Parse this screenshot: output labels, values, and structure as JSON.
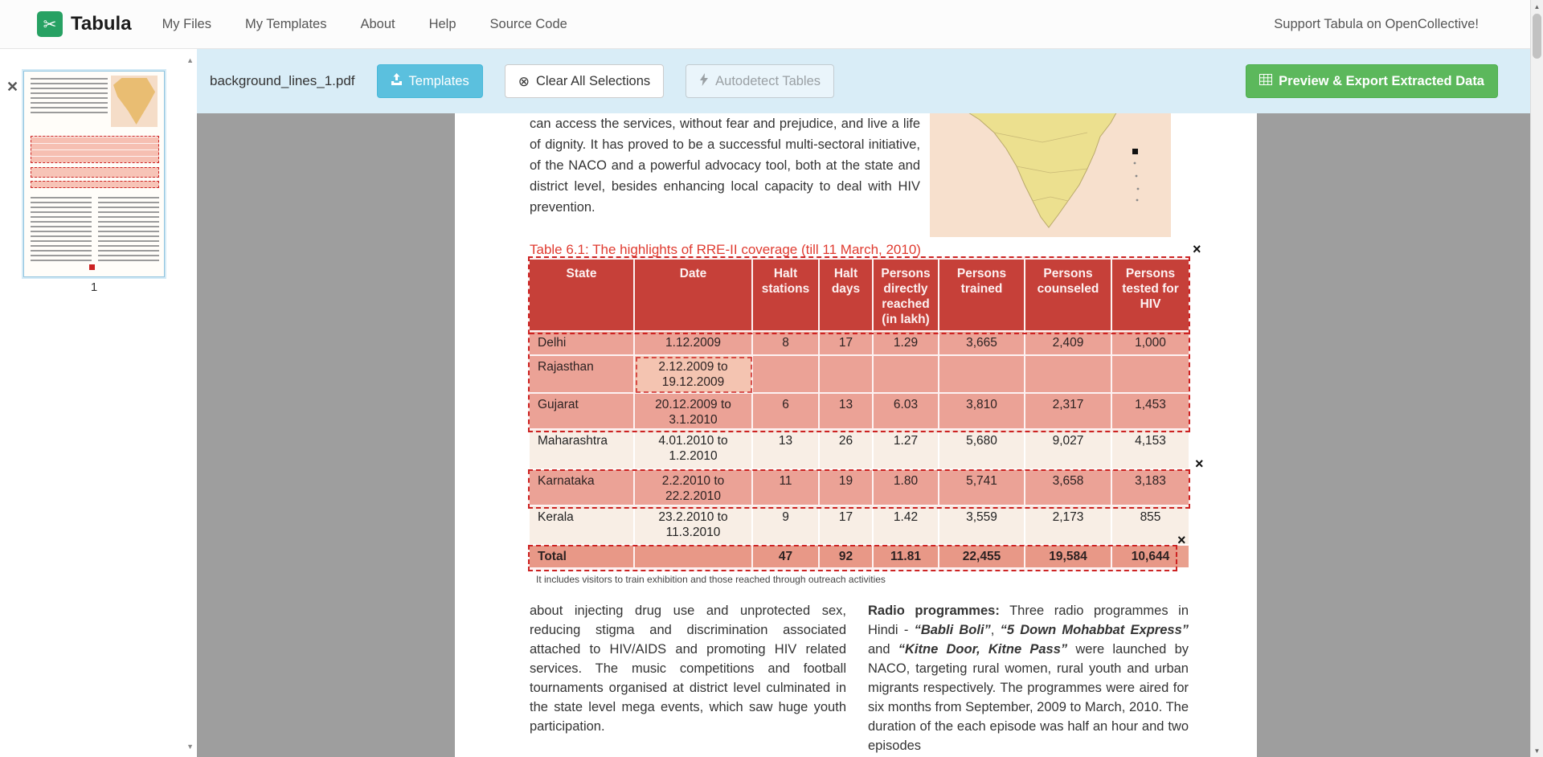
{
  "navbar": {
    "brand": "Tabula",
    "items": [
      {
        "label": "My Files"
      },
      {
        "label": "My Templates"
      },
      {
        "label": "About"
      },
      {
        "label": "Help"
      },
      {
        "label": "Source Code"
      }
    ],
    "support_link": "Support Tabula on OpenCollective!"
  },
  "toolbar": {
    "filename": "background_lines_1.pdf",
    "templates_button": "Templates",
    "clear_button": "Clear All Selections",
    "autodetect_button": "Autodetect Tables",
    "export_button": "Preview & Export Extracted Data"
  },
  "sidebar": {
    "page_number": "1"
  },
  "icons": {
    "logo-scissors": "✂",
    "clear-circle-x": "⊗",
    "close-x": "✕",
    "remove-x": "×",
    "arrow-up": "▲",
    "arrow-down": "▼"
  },
  "colors": {
    "toolbar-bg": "#d9edf7",
    "templates-btn": "#5bc0de",
    "export-btn": "#5cb85c",
    "table-header-red": "#c5423b",
    "selection-red": "#cc2222",
    "title-red": "#e03b30",
    "row-selected": "#ecab9e",
    "row-unselected": "#f8eee5",
    "row-total": "#e9a08e",
    "logo-green": "#27a163"
  },
  "page": {
    "intro_paragraph": "can access the services, without fear and prejudice, and live a life of dignity. It has proved to be a successful multi-sectoral initiative, of the NACO and a powerful advocacy tool, both at the state and district level, besides enhancing local capacity to deal with HIV prevention.",
    "table_title": "Table 6.1: The highlights of RRE-II coverage (till 11 March, 2010)",
    "table": {
      "headers": [
        "State",
        "Date",
        "Halt stations",
        "Halt days",
        "Persons directly reached (in lakh)",
        "Persons trained",
        "Persons counseled",
        "Persons tested for HIV"
      ],
      "rows": [
        [
          "Delhi",
          "1.12.2009",
          "8",
          "17",
          "1.29",
          "3,665",
          "2,409",
          "1,000"
        ],
        [
          "Rajasthan",
          "2.12.2009 to 19.12.2009",
          "",
          "",
          "",
          "",
          "",
          ""
        ],
        [
          "Gujarat",
          "20.12.2009 to 3.1.2010",
          "6",
          "13",
          "6.03",
          "3,810",
          "2,317",
          "1,453"
        ],
        [
          "Maharashtra",
          "4.01.2010 to 1.2.2010",
          "13",
          "26",
          "1.27",
          "5,680",
          "9,027",
          "4,153"
        ],
        [
          "Karnataka",
          "2.2.2010 to 22.2.2010",
          "11",
          "19",
          "1.80",
          "5,741",
          "3,658",
          "3,183"
        ],
        [
          "Kerala",
          "23.2.2010 to 11.3.2010",
          "9",
          "17",
          "1.42",
          "3,559",
          "2,173",
          "855"
        ],
        [
          "Total",
          "",
          "47",
          "92",
          "11.81",
          "22,455",
          "19,584",
          "10,644"
        ]
      ]
    },
    "footnote": "It includes visitors to train exhibition and those reached through outreach activities",
    "left_column": "about injecting drug use and unprotected sex, reducing stigma and discrimination associated attached to HIV/AIDS and promoting HIV related services. The music competitions and football tournaments organised at district level culminated in the state level mega events, which saw huge youth participation.",
    "right_column_segments": [
      {
        "text": "Radio programmes:",
        "bold": true
      },
      {
        "text": " Three radio programmes in Hindi - "
      },
      {
        "text": "“Babli Boli”",
        "bold": true,
        "italic": true
      },
      {
        "text": ", "
      },
      {
        "text": "“5 Down Mohabbat Express”",
        "bold": true,
        "italic": true
      },
      {
        "text": " and "
      },
      {
        "text": "“Kitne Door, Kitne Pass”",
        "bold": true,
        "italic": true
      },
      {
        "text": " were launched by NACO, targeting rural women, rural youth and urban migrants respectively. The programmes were aired for six months from September, 2009 to March, 2010. The duration of the each episode was half an hour and two episodes"
      }
    ]
  }
}
